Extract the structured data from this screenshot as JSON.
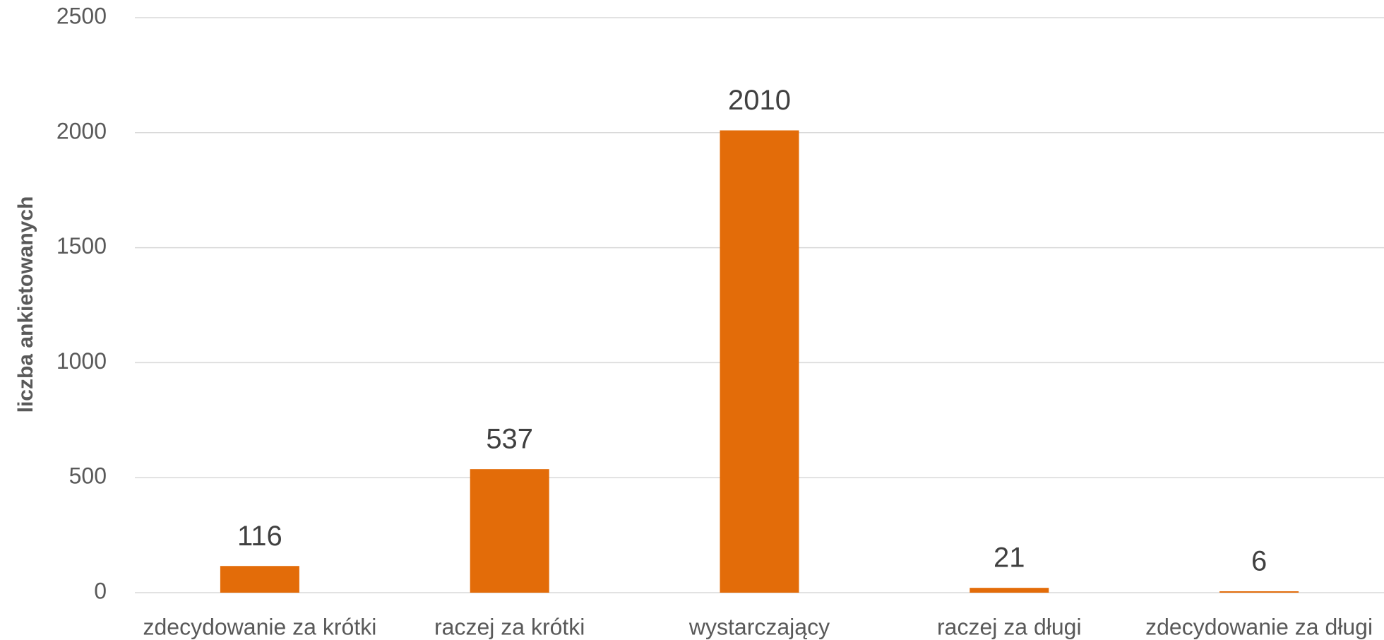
{
  "chart_data": {
    "type": "bar",
    "y_label": "liczba ankietowanych",
    "categories": [
      "zdecydowanie za krótki",
      "raczej za krótki",
      "wystarczający",
      "raczej za długi",
      "zdecydowanie za długi"
    ],
    "values": [
      116,
      537,
      2010,
      21,
      6
    ],
    "color": "#e36c09",
    "ylim": [
      0,
      2500
    ],
    "yticks": [
      0,
      500,
      1000,
      1500,
      2000,
      2500
    ],
    "grid": true
  }
}
